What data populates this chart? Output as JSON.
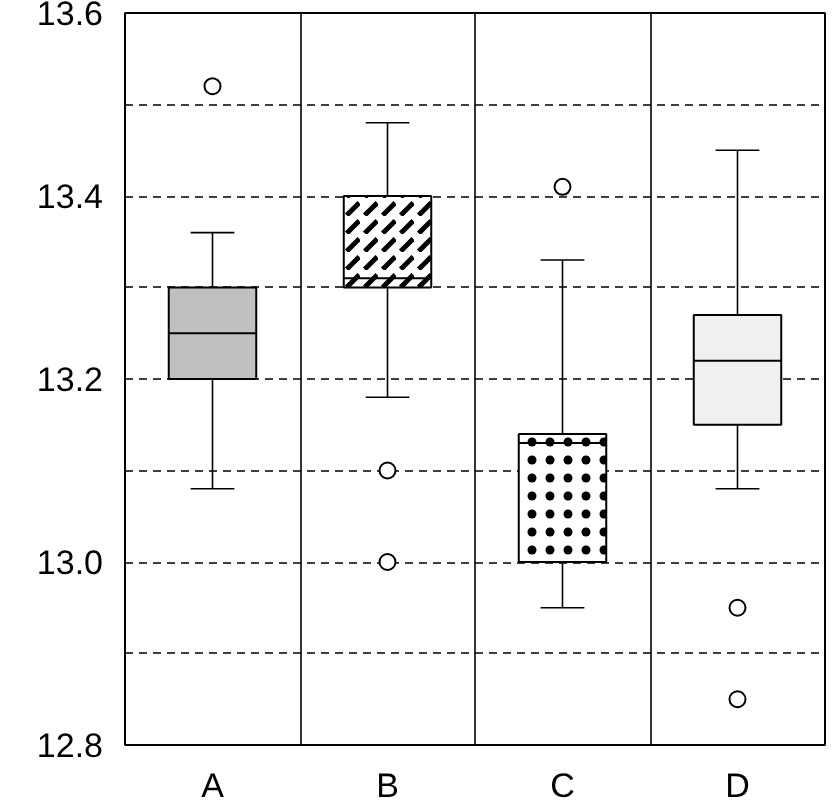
{
  "chart_data": {
    "type": "box",
    "categories": [
      "A",
      "B",
      "C",
      "D"
    ],
    "colors": [
      "#c0c0c0",
      "#ffffff",
      "#ffffff",
      "#f0f0f0"
    ],
    "boxes": [
      {
        "low": 13.08,
        "q1": 13.2,
        "median": 13.25,
        "q3": 13.3,
        "high": 13.36,
        "outliers": [
          13.52
        ]
      },
      {
        "low": 13.18,
        "q1": 13.3,
        "median": 13.31,
        "q3": 13.4,
        "high": 13.48,
        "outliers": [
          13.1,
          13.0
        ]
      },
      {
        "low": 12.95,
        "q1": 13.0,
        "median": 13.13,
        "q3": 13.14,
        "high": 13.33,
        "outliers": [
          13.41
        ]
      },
      {
        "low": 13.08,
        "q1": 13.15,
        "median": 13.22,
        "q3": 13.27,
        "high": 13.45,
        "outliers": [
          12.95,
          12.85
        ]
      }
    ],
    "ylim": [
      12.8,
      13.6
    ],
    "yticks": [
      12.8,
      {
        "value": 12.9,
        "label": null
      },
      {
        "value": 13.0,
        "label": "13.0"
      },
      {
        "value": 13.1,
        "label": null
      },
      13.2,
      {
        "value": 13.3,
        "label": null
      },
      13.4,
      {
        "value": 13.5,
        "label": null
      },
      13.6
    ],
    "grid": true
  }
}
